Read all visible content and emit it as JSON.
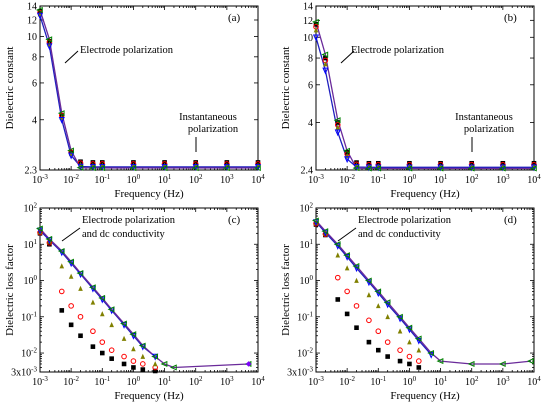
{
  "chart_data": [
    {
      "panel": "(a)",
      "type": "scatter",
      "xscale": "log",
      "yscale": "log",
      "xlim": [
        0.001,
        10000
      ],
      "ylim": [
        2.3,
        14
      ],
      "xlabel": "Frequency (Hz)",
      "ylabel": "Dielectric constant",
      "x_tick_labels": [
        "10^-3",
        "10^-2",
        "10^-1",
        "10^0",
        "10^1",
        "10^2",
        "10^3",
        "10^4"
      ],
      "y_ticks": [
        2.3,
        4,
        6,
        8,
        10,
        12,
        14
      ],
      "y_tick_labels": [
        "2.3",
        "4",
        "6",
        "8",
        "10",
        "12",
        "14"
      ],
      "annotations": [
        "Electrode polarization",
        "Instantaneous polarization"
      ],
      "series": [
        {
          "marker": "square",
          "color": "#000000",
          "x": [
            0.001,
            0.002,
            0.005,
            0.01,
            0.02,
            0.05,
            0.1,
            1,
            10,
            100,
            1000,
            10000
          ],
          "values": [
            13.2,
            9.5,
            4.2,
            2.8,
            2.52,
            2.5,
            2.5,
            2.5,
            2.5,
            2.5,
            2.5,
            2.5
          ]
        },
        {
          "marker": "circle",
          "color": "#ff0000",
          "x": [
            0.001,
            0.002,
            0.005,
            0.01,
            0.02,
            0.05,
            0.1,
            1,
            10,
            100,
            1000,
            10000
          ],
          "values": [
            13.0,
            9.4,
            4.2,
            2.8,
            2.48,
            2.46,
            2.46,
            2.46,
            2.46,
            2.46,
            2.46,
            2.46
          ]
        },
        {
          "marker": "triangle-up",
          "color": "#808000",
          "x": [
            0.001,
            0.002,
            0.005,
            0.01,
            0.02,
            0.05,
            0.1,
            1,
            10,
            100,
            1000,
            10000
          ],
          "values": [
            12.8,
            9.2,
            4.1,
            2.75,
            2.44,
            2.42,
            2.42,
            2.42,
            2.42,
            2.42,
            2.42,
            2.42
          ]
        },
        {
          "marker": "triangle-down",
          "color": "#0000ff",
          "x": [
            0.001,
            0.002,
            0.005,
            0.01,
            0.02,
            0.05,
            0.1,
            1,
            10,
            100,
            1000,
            10000
          ],
          "values": [
            12.6,
            9.0,
            4.0,
            2.7,
            2.39,
            2.38,
            2.38,
            2.38,
            2.38,
            2.38,
            2.38,
            2.38
          ]
        },
        {
          "marker": "triangle-left",
          "color": "#008000",
          "x": [
            0.001,
            0.002,
            0.005,
            0.01,
            0.02,
            0.05,
            0.1,
            1,
            10,
            100,
            1000,
            10000
          ],
          "values": [
            13.4,
            9.7,
            4.3,
            2.85,
            2.36,
            2.35,
            2.35,
            2.35,
            2.35,
            2.35,
            2.35,
            2.35
          ]
        }
      ]
    },
    {
      "panel": "(b)",
      "type": "scatter",
      "xscale": "log",
      "yscale": "log",
      "xlim": [
        0.001,
        10000
      ],
      "ylim": [
        2.4,
        14
      ],
      "xlabel": "Frequency (Hz)",
      "ylabel": "Dielectric constant",
      "x_tick_labels": [
        "10^-3",
        "10^-2",
        "10^-1",
        "10^0",
        "10^1",
        "10^2",
        "10^3",
        "10^4"
      ],
      "y_ticks": [
        2.4,
        4,
        6,
        8,
        10,
        12,
        14
      ],
      "y_tick_labels": [
        "2.4",
        "4",
        "6",
        "8",
        "10",
        "12",
        "14"
      ],
      "annotations": [
        "Electrode polarization",
        "Instantaneous polarization"
      ],
      "series": [
        {
          "marker": "square",
          "color": "#000000",
          "x": [
            0.001,
            0.002,
            0.005,
            0.01,
            0.02,
            0.05,
            0.1,
            1,
            10,
            100,
            1000,
            10000
          ],
          "values": [
            11.5,
            8.0,
            4.0,
            2.9,
            2.6,
            2.58,
            2.58,
            2.58,
            2.58,
            2.58,
            2.58,
            2.58
          ]
        },
        {
          "marker": "circle",
          "color": "#ff0000",
          "x": [
            0.001,
            0.002,
            0.005,
            0.01,
            0.02,
            0.05,
            0.1,
            1,
            10,
            100,
            1000,
            10000
          ],
          "values": [
            11.2,
            7.8,
            3.9,
            2.85,
            2.55,
            2.54,
            2.54,
            2.54,
            2.54,
            2.54,
            2.54,
            2.54
          ]
        },
        {
          "marker": "triangle-up",
          "color": "#808000",
          "x": [
            0.001,
            0.002,
            0.005,
            0.01,
            0.02,
            0.05,
            0.1,
            1,
            10,
            100,
            1000,
            10000
          ],
          "values": [
            10.8,
            7.5,
            3.8,
            2.8,
            2.52,
            2.5,
            2.5,
            2.5,
            2.5,
            2.5,
            2.5,
            2.5
          ]
        },
        {
          "marker": "triangle-down",
          "color": "#0000ff",
          "x": [
            0.001,
            0.002,
            0.005,
            0.01,
            0.02,
            0.05,
            0.1,
            1,
            10,
            100,
            1000,
            10000
          ],
          "values": [
            10.0,
            7.0,
            3.6,
            2.7,
            2.48,
            2.47,
            2.47,
            2.47,
            2.47,
            2.47,
            2.47,
            2.47
          ]
        },
        {
          "marker": "triangle-left",
          "color": "#008000",
          "x": [
            0.001,
            0.002,
            0.005,
            0.01,
            0.02,
            0.05,
            0.1,
            1,
            10,
            100,
            1000,
            10000
          ],
          "values": [
            11.8,
            8.3,
            4.1,
            2.95,
            2.45,
            2.44,
            2.44,
            2.44,
            2.44,
            2.44,
            2.44,
            2.44
          ]
        }
      ]
    },
    {
      "panel": "(c)",
      "type": "scatter",
      "xscale": "log",
      "yscale": "log",
      "xlim": [
        0.001,
        10000
      ],
      "ylim": [
        0.003,
        100
      ],
      "xlabel": "Frequency (Hz)",
      "ylabel": "Dielectric loss factor",
      "x_tick_labels": [
        "10^-3",
        "10^-2",
        "10^-1",
        "10^0",
        "10^1",
        "10^2",
        "10^3",
        "10^4"
      ],
      "y_tick_labels": [
        "3x10^-3",
        "10^-2",
        "10^-1",
        "10^0",
        "10^1",
        "10^2"
      ],
      "annotations": [
        "Electrode polarization",
        "and dc conductivity"
      ],
      "series": [
        {
          "marker": "square",
          "color": "#000000",
          "x": [
            0.001,
            0.002,
            0.005,
            0.01,
            0.02,
            0.05,
            0.1,
            0.2,
            0.5,
            1,
            2,
            5
          ],
          "values": [
            20,
            10,
            0.15,
            0.06,
            0.03,
            0.015,
            0.01,
            0.007,
            0.005,
            0.004,
            0.0035,
            0.0032
          ]
        },
        {
          "marker": "circle",
          "color": "#ff0000",
          "x": [
            0.001,
            0.002,
            0.005,
            0.01,
            0.02,
            0.05,
            0.1,
            0.2,
            0.5,
            1,
            2,
            5
          ],
          "values": [
            21,
            11,
            0.5,
            0.2,
            0.1,
            0.04,
            0.02,
            0.012,
            0.008,
            0.006,
            0.005,
            0.004
          ]
        },
        {
          "marker": "triangle-up",
          "color": "#808000",
          "x": [
            0.001,
            0.002,
            0.005,
            0.01,
            0.02,
            0.05,
            0.1,
            0.2,
            0.5,
            1,
            2,
            5
          ],
          "values": [
            22,
            12,
            2.5,
            1.3,
            0.6,
            0.25,
            0.12,
            0.06,
            0.025,
            0.013,
            0.008,
            0.005
          ]
        },
        {
          "marker": "triangle-down",
          "color": "#0000ff",
          "x": [
            0.001,
            0.002,
            0.005,
            0.01,
            0.02,
            0.05,
            0.1,
            0.2,
            0.5,
            1,
            2,
            5
          ],
          "values": [
            24,
            13,
            6,
            3,
            1.5,
            0.6,
            0.3,
            0.15,
            0.06,
            0.03,
            0.015,
            0.008
          ]
        },
        {
          "marker": "triangle-left",
          "color": "#008000",
          "x": [
            0.001,
            0.002,
            0.005,
            0.01,
            0.02,
            0.05,
            0.1,
            0.2,
            0.5,
            1,
            2,
            5,
            10,
            20,
            5000
          ],
          "values": [
            27,
            14,
            6.5,
            3.3,
            1.6,
            0.65,
            0.33,
            0.16,
            0.065,
            0.033,
            0.016,
            0.008,
            0.005,
            0.004,
            0.005
          ]
        },
        {
          "marker": "diamond",
          "color": "#8000ff",
          "x": [
            5000
          ],
          "values": [
            0.005
          ]
        }
      ]
    },
    {
      "panel": "(d)",
      "type": "scatter",
      "xscale": "log",
      "yscale": "log",
      "xlim": [
        0.001,
        10000
      ],
      "ylim": [
        0.003,
        100
      ],
      "xlabel": "Frequency (Hz)",
      "ylabel": "Dielectric loss factor",
      "x_tick_labels": [
        "10^-3",
        "10^-2",
        "10^-1",
        "10^0",
        "10^1",
        "10^2",
        "10^3",
        "10^4"
      ],
      "y_tick_labels": [
        "3x10^-3",
        "10^-2",
        "10^-1",
        "10^0",
        "10^1",
        "10^2"
      ],
      "annotations": [
        "Electrode polarization",
        "and dc conductivity"
      ],
      "series": [
        {
          "marker": "square",
          "color": "#000000",
          "x": [
            0.001,
            0.002,
            0.005,
            0.01,
            0.02,
            0.05,
            0.1,
            0.2,
            0.5,
            1,
            2
          ],
          "values": [
            35,
            18,
            0.3,
            0.12,
            0.05,
            0.02,
            0.012,
            0.008,
            0.006,
            0.005,
            0.004
          ]
        },
        {
          "marker": "circle",
          "color": "#ff0000",
          "x": [
            0.001,
            0.002,
            0.005,
            0.01,
            0.02,
            0.05,
            0.1,
            0.2,
            0.5,
            1,
            2
          ],
          "values": [
            37,
            19,
            1.2,
            0.5,
            0.2,
            0.08,
            0.04,
            0.02,
            0.012,
            0.008,
            0.006
          ]
        },
        {
          "marker": "triangle-up",
          "color": "#808000",
          "x": [
            0.001,
            0.002,
            0.005,
            0.01,
            0.02,
            0.05,
            0.1,
            0.2,
            0.5,
            1,
            2
          ],
          "values": [
            39,
            20,
            5,
            2.2,
            1.0,
            0.4,
            0.2,
            0.1,
            0.04,
            0.02,
            0.012
          ]
        },
        {
          "marker": "triangle-down",
          "color": "#0000ff",
          "x": [
            0.001,
            0.002,
            0.005,
            0.01,
            0.02,
            0.05,
            0.1,
            0.2,
            0.5,
            1,
            2,
            5
          ],
          "values": [
            41,
            21,
            9,
            4.5,
            2.2,
            0.9,
            0.45,
            0.22,
            0.09,
            0.045,
            0.022,
            0.009
          ]
        },
        {
          "marker": "triangle-left",
          "color": "#008000",
          "x": [
            0.001,
            0.002,
            0.005,
            0.01,
            0.02,
            0.05,
            0.1,
            0.2,
            0.5,
            1,
            2,
            5,
            10,
            100,
            1000,
            8000
          ],
          "values": [
            45,
            23,
            10,
            5,
            2.5,
            1,
            0.5,
            0.25,
            0.1,
            0.05,
            0.025,
            0.01,
            0.006,
            0.005,
            0.005,
            0.006
          ]
        }
      ]
    }
  ]
}
